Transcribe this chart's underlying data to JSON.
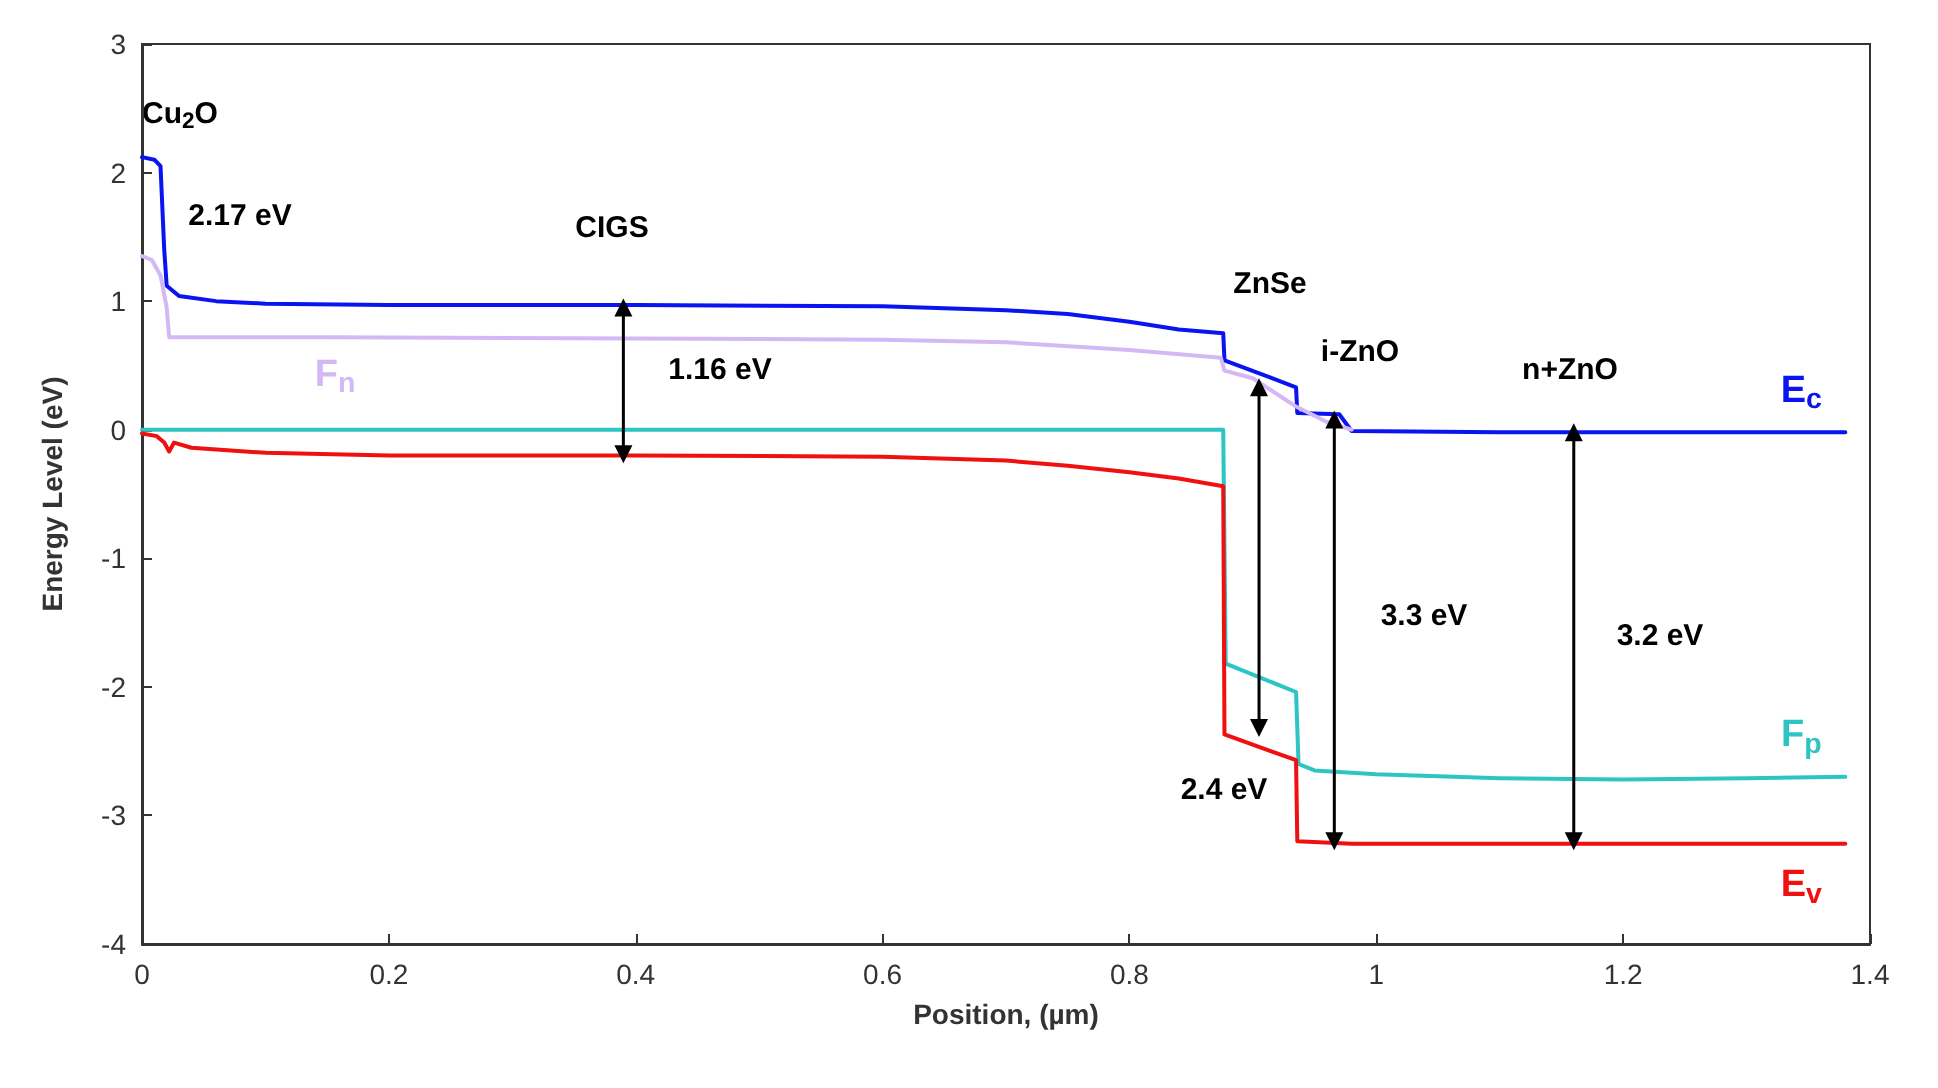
{
  "chart_data": {
    "type": "line",
    "xlabel": "Position, (µm)",
    "ylabel": "Energy Level (eV)",
    "xlim": [
      0,
      1.4
    ],
    "xticks": [
      0,
      0.2,
      0.4,
      0.6,
      0.8,
      1,
      1.2,
      1.4
    ],
    "ylim": [
      -4,
      3
    ],
    "yticks": [
      -4,
      -3,
      -2,
      -1,
      0,
      1,
      2,
      3
    ],
    "grid": false,
    "legend": false,
    "marker": "none",
    "line_style": "solid",
    "series": [
      {
        "name": "E$_{c}$",
        "color": "#0a14f0",
        "x": [
          0,
          0.01,
          0.015,
          0.018,
          0.02,
          0.03,
          0.06,
          0.1,
          0.2,
          0.4,
          0.6,
          0.7,
          0.75,
          0.8,
          0.84,
          0.876,
          0.877,
          0.935,
          0.936,
          0.97,
          0.98,
          1.1,
          1.38
        ],
        "values": [
          2.12,
          2.1,
          2.05,
          1.4,
          1.12,
          1.04,
          1.0,
          0.98,
          0.97,
          0.97,
          0.96,
          0.93,
          0.9,
          0.84,
          0.78,
          0.75,
          0.54,
          0.33,
          0.13,
          0.12,
          -0.01,
          -0.02,
          -0.02
        ]
      },
      {
        "name": "F$_{n}$",
        "color": "#d3b8f5",
        "x": [
          0,
          0.008,
          0.015,
          0.02,
          0.022,
          0.15,
          0.4,
          0.6,
          0.7,
          0.8,
          0.85,
          0.874,
          0.877,
          0.9,
          0.935,
          0.96,
          0.98
        ],
        "values": [
          1.35,
          1.32,
          1.2,
          0.95,
          0.72,
          0.72,
          0.71,
          0.7,
          0.68,
          0.62,
          0.58,
          0.56,
          0.46,
          0.4,
          0.18,
          0.06,
          0.0
        ]
      },
      {
        "name": "F$_{p}$",
        "color": "#2ec4c4",
        "x": [
          0,
          0.2,
          0.4,
          0.6,
          0.8,
          0.876,
          0.878,
          0.935,
          0.937,
          0.95,
          1.0,
          1.1,
          1.2,
          1.3,
          1.38
        ],
        "values": [
          0,
          0,
          0,
          0,
          0,
          0,
          -1.82,
          -2.04,
          -2.6,
          -2.65,
          -2.68,
          -2.71,
          -2.72,
          -2.71,
          -2.7
        ]
      },
      {
        "name": "E$_{v}$",
        "color": "#f01010",
        "x": [
          0,
          0.012,
          0.018,
          0.022,
          0.026,
          0.04,
          0.1,
          0.2,
          0.4,
          0.6,
          0.7,
          0.75,
          0.8,
          0.84,
          0.876,
          0.877,
          0.935,
          0.936,
          0.98,
          1.1,
          1.38
        ],
        "values": [
          -0.03,
          -0.05,
          -0.1,
          -0.17,
          -0.1,
          -0.14,
          -0.18,
          -0.2,
          -0.2,
          -0.21,
          -0.24,
          -0.28,
          -0.33,
          -0.38,
          -0.44,
          -2.37,
          -2.57,
          -3.2,
          -3.22,
          -3.22,
          -3.22
        ]
      },
      {
        "color": "#000000",
        "marker": "triangle",
        "x": [
          0.39,
          0.39
        ],
        "values": [
          -0.19,
          0.95
        ]
      },
      {
        "color": "#000000",
        "marker": "triangle",
        "x": [
          0.905,
          0.905
        ],
        "values": [
          -2.32,
          0.33
        ]
      },
      {
        "color": "#000000",
        "marker": "triangle",
        "x": [
          0.966,
          0.966
        ],
        "values": [
          -3.2,
          0.08
        ]
      },
      {
        "color": "#000000",
        "marker": "triangle",
        "x": [
          1.16,
          1.16
        ],
        "values": [
          -3.2,
          -0.02
        ]
      }
    ],
    "annotations": [
      "Cu$_{2}$O",
      "2.17 eV",
      "CIGS",
      "1.16 eV",
      "ZnSe",
      "i-ZnO",
      "n+ZnO",
      "3.3 eV",
      "3.2 eV",
      "2.4 eV"
    ]
  }
}
